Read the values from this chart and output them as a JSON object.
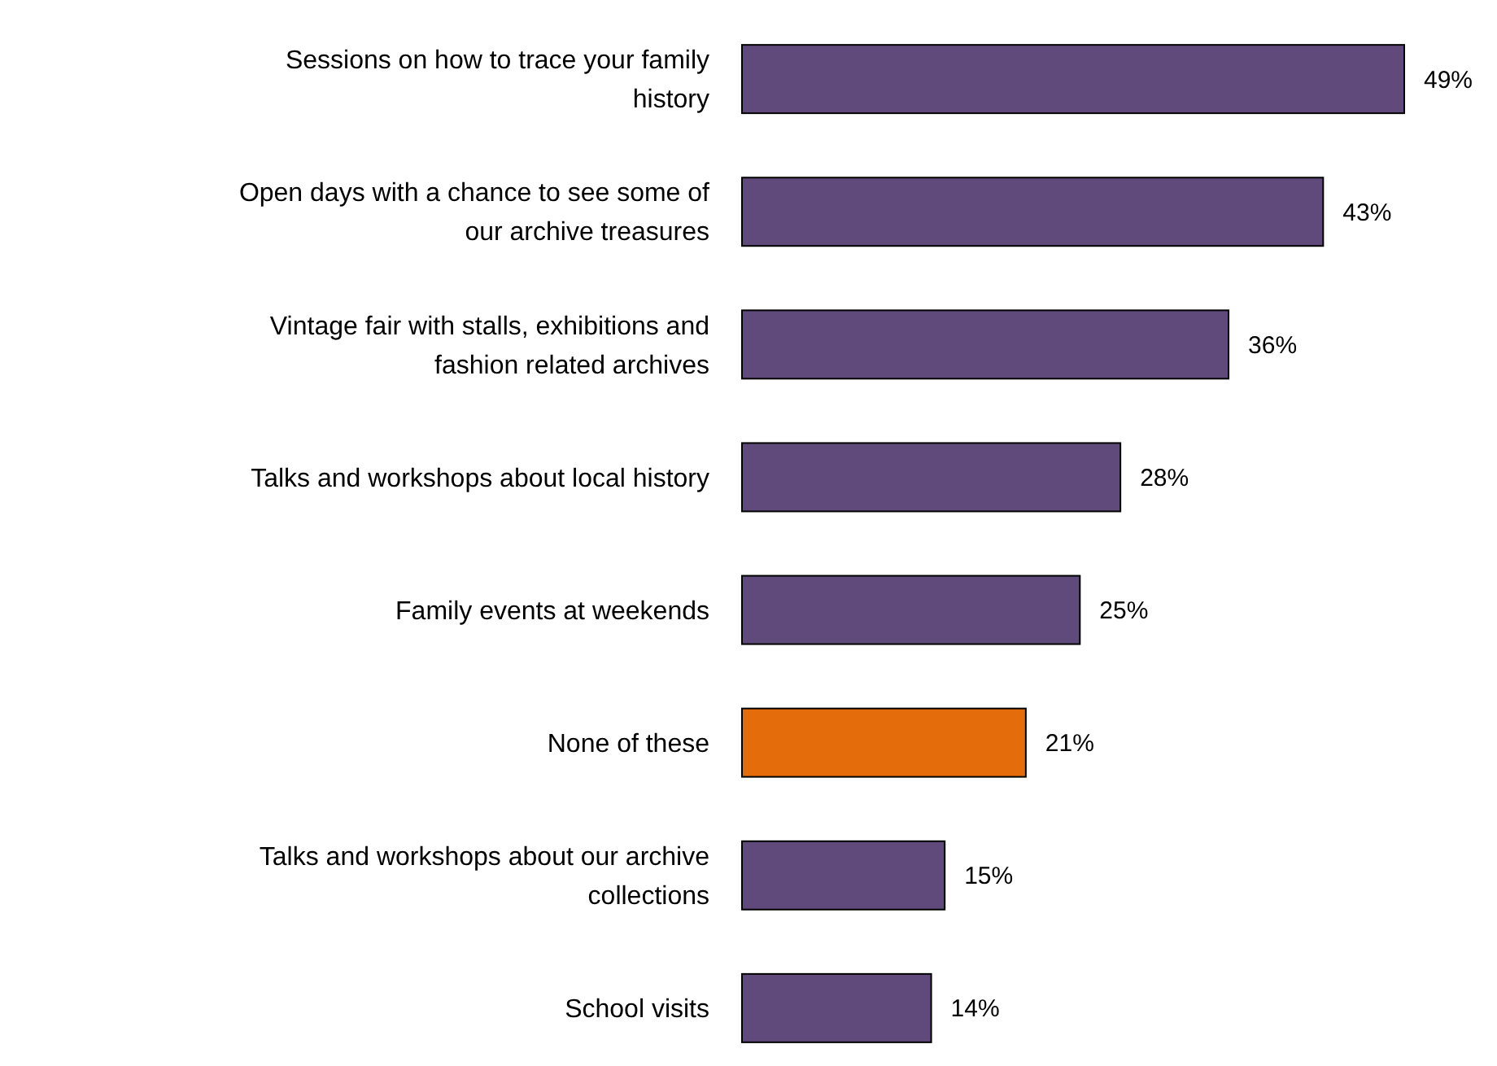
{
  "chart_data": {
    "type": "bar",
    "orientation": "horizontal",
    "value_labels": [
      "49%",
      "43%",
      "36%",
      "28%",
      "25%",
      "21%",
      "15%",
      "14%"
    ],
    "categories": [
      "Sessions on how to trace your family history",
      "Open days with a chance to see some of our archive treasures",
      "Vintage fair with stalls, exhibitions and fashion related archives",
      "Talks and workshops about local history",
      "Family events at weekends",
      "None of these",
      "Talks and workshops about our archive collections",
      "School visits"
    ],
    "values": [
      49,
      43,
      36,
      28,
      25,
      21,
      15,
      14
    ],
    "colors": [
      "#5f4a7b",
      "#5f4a7b",
      "#5f4a7b",
      "#5f4a7b",
      "#5f4a7b",
      "#e46c0a",
      "#5f4a7b",
      "#5f4a7b"
    ]
  }
}
